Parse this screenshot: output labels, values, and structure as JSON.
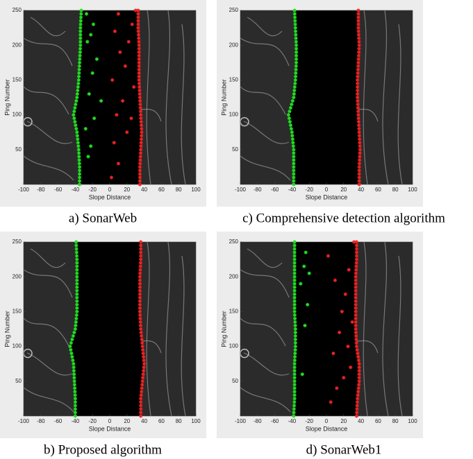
{
  "chart_data": [
    {
      "type": "scatter",
      "caption": "a) SonarWeb",
      "xlabel": "Slope Distance",
      "ylabel": "Ping Number",
      "xlim": [
        -100,
        100
      ],
      "xticks": [
        -100,
        -80,
        -60,
        -40,
        -20,
        0,
        20,
        40,
        60,
        80,
        100
      ],
      "ylim": [
        0,
        250
      ],
      "yticks": [
        50,
        100,
        150,
        200,
        250
      ],
      "series": [
        {
          "color": "#22dd22",
          "x": [
            -35,
            -35,
            -36,
            -38,
            -42,
            -38,
            -36,
            -35,
            -34,
            -34,
            -33
          ],
          "values": [
            0,
            25,
            50,
            75,
            100,
            125,
            150,
            175,
            200,
            225,
            250
          ]
        },
        {
          "color": "#ee2222",
          "x": [
            35,
            35,
            36,
            37,
            36,
            35,
            34,
            34,
            34,
            33,
            33
          ],
          "values": [
            0,
            25,
            50,
            75,
            100,
            125,
            150,
            175,
            200,
            225,
            250
          ]
        },
        {
          "color": "#22dd22",
          "x": [
            -25,
            -22,
            -28,
            -18,
            -10,
            -24,
            -20,
            -15,
            -26,
            -22,
            -19,
            -27
          ],
          "values": [
            40,
            55,
            80,
            95,
            120,
            130,
            160,
            180,
            205,
            215,
            230,
            245
          ]
        },
        {
          "color": "#ee2222",
          "x": [
            2,
            10,
            5,
            20,
            25,
            8,
            15,
            28,
            3,
            18,
            12,
            22,
            6,
            26,
            10,
            30
          ],
          "values": [
            10,
            30,
            60,
            75,
            95,
            100,
            120,
            140,
            150,
            170,
            190,
            205,
            220,
            230,
            245,
            250
          ]
        }
      ]
    },
    {
      "type": "scatter",
      "caption": "c) Comprehensive detection algorithm",
      "xlabel": "Slope Distance",
      "ylabel": "Ping Number",
      "xlim": [
        -100,
        100
      ],
      "xticks": [
        -100,
        -80,
        -60,
        -40,
        -20,
        0,
        20,
        40,
        60,
        80,
        100
      ],
      "ylim": [
        0,
        250
      ],
      "yticks": [
        50,
        100,
        150,
        200,
        250
      ],
      "series": [
        {
          "color": "#22dd22",
          "x": [
            -38,
            -38,
            -38,
            -40,
            -44,
            -38,
            -36,
            -35,
            -35,
            -36,
            -37
          ],
          "values": [
            0,
            25,
            50,
            75,
            100,
            125,
            150,
            175,
            200,
            225,
            250
          ]
        },
        {
          "color": "#ee2222",
          "x": [
            38,
            38,
            39,
            38,
            37,
            36,
            36,
            37,
            38,
            37,
            37
          ],
          "values": [
            0,
            25,
            50,
            75,
            100,
            125,
            150,
            175,
            200,
            225,
            250
          ]
        }
      ]
    },
    {
      "type": "scatter",
      "caption": "b) Proposed algorithm",
      "xlabel": "Slope Distance",
      "ylabel": "Ping Number",
      "xlim": [
        -100,
        100
      ],
      "xticks": [
        -100,
        -80,
        -60,
        -40,
        -20,
        0,
        20,
        40,
        60,
        80,
        100
      ],
      "ylim": [
        0,
        250
      ],
      "yticks": [
        50,
        100,
        150,
        200,
        250
      ],
      "series": [
        {
          "color": "#22dd22",
          "x": [
            -40,
            -40,
            -41,
            -42,
            -46,
            -40,
            -38,
            -38,
            -38,
            -38,
            -39
          ],
          "values": [
            0,
            25,
            50,
            75,
            100,
            125,
            150,
            175,
            200,
            225,
            250
          ]
        },
        {
          "color": "#ee2222",
          "x": [
            36,
            36,
            38,
            40,
            38,
            36,
            35,
            35,
            35,
            36,
            36
          ],
          "values": [
            0,
            25,
            50,
            75,
            100,
            125,
            150,
            175,
            200,
            225,
            250
          ]
        }
      ]
    },
    {
      "type": "scatter",
      "caption": "d) SonarWeb1",
      "xlabel": "Slope Distance",
      "ylabel": "Ping Number",
      "xlim": [
        -100,
        100
      ],
      "xticks": [
        -100,
        -80,
        -60,
        -40,
        -20,
        0,
        20,
        40,
        60,
        80,
        100
      ],
      "ylim": [
        0,
        250
      ],
      "yticks": [
        50,
        100,
        150,
        200,
        250
      ],
      "series": [
        {
          "color": "#22dd22",
          "x": [
            -38,
            -37,
            -37,
            -37,
            -36,
            -36,
            -37,
            -37,
            -37,
            -37,
            -37
          ],
          "values": [
            0,
            25,
            50,
            75,
            100,
            125,
            150,
            175,
            200,
            225,
            250
          ]
        },
        {
          "color": "#ee2222",
          "x": [
            35,
            36,
            38,
            38,
            35,
            34,
            34,
            34,
            34,
            35,
            35
          ],
          "values": [
            0,
            25,
            50,
            75,
            100,
            125,
            150,
            175,
            200,
            225,
            250
          ]
        },
        {
          "color": "#22dd22",
          "x": [
            -28,
            -25,
            -22,
            -30,
            -20,
            -26,
            -24
          ],
          "values": [
            60,
            130,
            160,
            190,
            205,
            215,
            235
          ]
        },
        {
          "color": "#ee2222",
          "x": [
            5,
            12,
            20,
            28,
            8,
            25,
            15,
            30,
            18,
            22,
            10,
            26,
            2,
            32
          ],
          "values": [
            20,
            40,
            55,
            70,
            90,
            100,
            120,
            135,
            150,
            175,
            195,
            210,
            230,
            250
          ]
        }
      ]
    }
  ]
}
